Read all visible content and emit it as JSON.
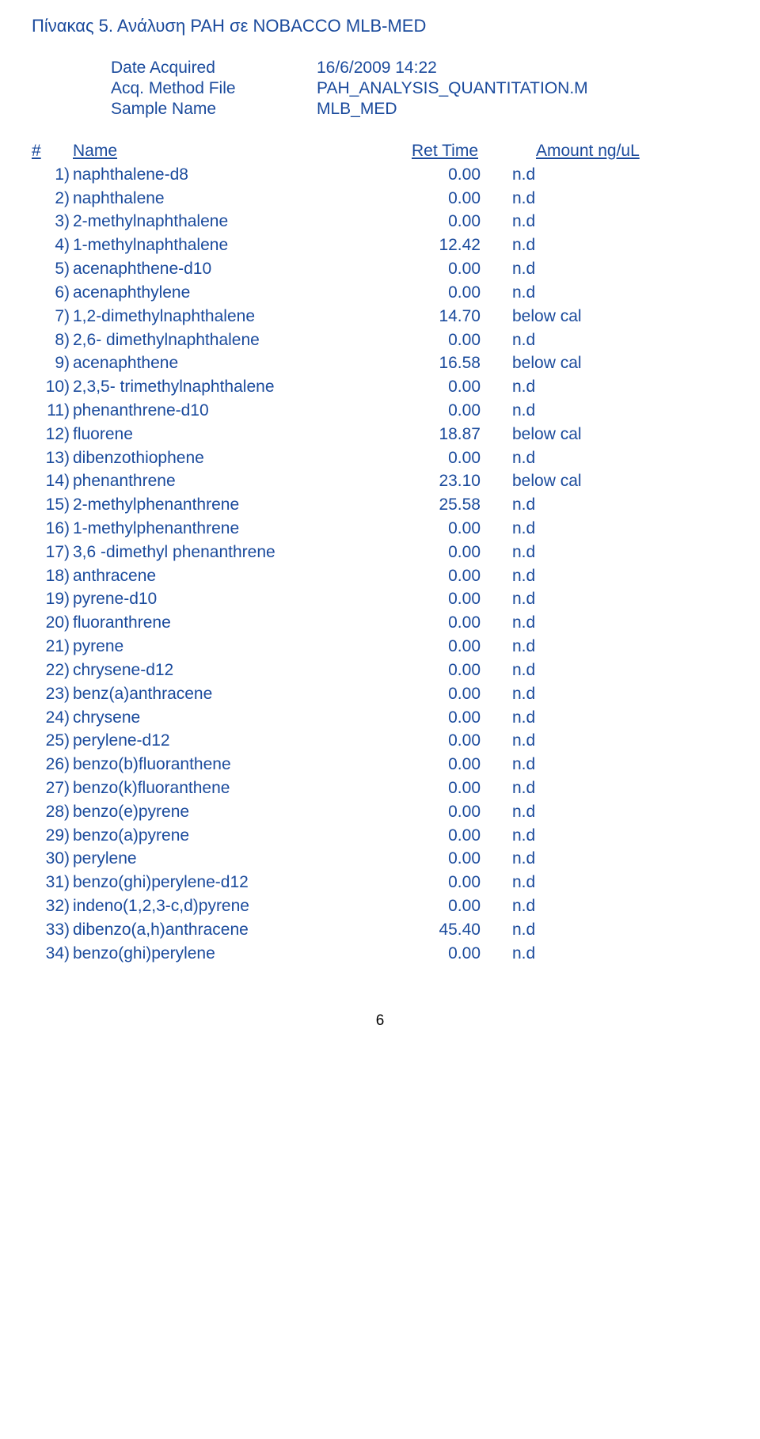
{
  "title": "Πίνακας 5. Ανάλυση PAH σε NOBACCO MLB-MED",
  "meta": {
    "date_label": "Date Acquired",
    "date_value": "16/6/2009 14:22",
    "method_label": "Acq. Method File",
    "method_value": "PAH_ANALYSIS_QUANTITATION.M",
    "sample_label": "Sample Name",
    "sample_value": "MLB_MED"
  },
  "headers": {
    "num": "#",
    "name": "Name",
    "ret": "Ret Time",
    "amt": "Amount ng/uL"
  },
  "rows": [
    {
      "num": "1)",
      "name": "naphthalene-d8",
      "ret": "0.00",
      "amt": "n.d"
    },
    {
      "num": "2)",
      "name": "naphthalene",
      "ret": "0.00",
      "amt": "n.d"
    },
    {
      "num": "3)",
      "name": "2-methylnaphthalene",
      "ret": "0.00",
      "amt": "n.d"
    },
    {
      "num": "4)",
      "name": "1-methylnaphthalene",
      "ret": "12.42",
      "amt": "n.d"
    },
    {
      "num": "5)",
      "name": "acenaphthene-d10",
      "ret": "0.00",
      "amt": "n.d"
    },
    {
      "num": "6)",
      "name": "acenaphthylene",
      "ret": "0.00",
      "amt": "n.d"
    },
    {
      "num": "7)",
      "name": "1,2-dimethylnaphthalene",
      "ret": "14.70",
      "amt": "below cal"
    },
    {
      "num": "8)",
      "name": "2,6- dimethylnaphthalene",
      "ret": "0.00",
      "amt": "n.d"
    },
    {
      "num": "9)",
      "name": "acenaphthene",
      "ret": "16.58",
      "amt": "below cal"
    },
    {
      "num": "10)",
      "name": "2,3,5- trimethylnaphthalene",
      "ret": "0.00",
      "amt": "n.d"
    },
    {
      "num": "11)",
      "name": "phenanthrene-d10",
      "ret": "0.00",
      "amt": "n.d"
    },
    {
      "num": "12)",
      "name": "fluorene",
      "ret": "18.87",
      "amt": "below cal"
    },
    {
      "num": "13)",
      "name": "dibenzothiophene",
      "ret": "0.00",
      "amt": "n.d"
    },
    {
      "num": "14)",
      "name": "phenanthrene",
      "ret": "23.10",
      "amt": "below cal"
    },
    {
      "num": "15)",
      "name": "2-methylphenanthrene",
      "ret": "25.58",
      "amt": "n.d"
    },
    {
      "num": "16)",
      "name": "1-methylphenanthrene",
      "ret": "0.00",
      "amt": "n.d"
    },
    {
      "num": "17)",
      "name": "3,6 -dimethyl phenanthrene",
      "ret": "0.00",
      "amt": "n.d"
    },
    {
      "num": "18)",
      "name": "anthracene",
      "ret": "0.00",
      "amt": "n.d"
    },
    {
      "num": "19)",
      "name": "pyrene-d10",
      "ret": "0.00",
      "amt": "n.d"
    },
    {
      "num": "20)",
      "name": "fluoranthrene",
      "ret": "0.00",
      "amt": "n.d"
    },
    {
      "num": "21)",
      "name": "pyrene",
      "ret": "0.00",
      "amt": "n.d"
    },
    {
      "num": "22)",
      "name": "chrysene-d12",
      "ret": "0.00",
      "amt": "n.d"
    },
    {
      "num": "23)",
      "name": "benz(a)anthracene",
      "ret": "0.00",
      "amt": "n.d"
    },
    {
      "num": "24)",
      "name": "chrysene",
      "ret": "0.00",
      "amt": "n.d"
    },
    {
      "num": "25)",
      "name": "perylene-d12",
      "ret": "0.00",
      "amt": "n.d"
    },
    {
      "num": "26)",
      "name": "benzo(b)fluoranthene",
      "ret": "0.00",
      "amt": "n.d"
    },
    {
      "num": "27)",
      "name": "benzo(k)fluoranthene",
      "ret": "0.00",
      "amt": "n.d"
    },
    {
      "num": "28)",
      "name": "benzo(e)pyrene",
      "ret": "0.00",
      "amt": "n.d"
    },
    {
      "num": "29)",
      "name": "benzo(a)pyrene",
      "ret": "0.00",
      "amt": "n.d"
    },
    {
      "num": "30)",
      "name": "perylene",
      "ret": "0.00",
      "amt": "n.d"
    },
    {
      "num": "31)",
      "name": "benzo(ghi)perylene-d12",
      "ret": "0.00",
      "amt": "n.d"
    },
    {
      "num": "32)",
      "name": "indeno(1,2,3-c,d)pyrene",
      "ret": "0.00",
      "amt": "n.d"
    },
    {
      "num": "33)",
      "name": "dibenzo(a,h)anthracene",
      "ret": "45.40",
      "amt": "n.d"
    },
    {
      "num": "34)",
      "name": "benzo(ghi)perylene",
      "ret": "0.00",
      "amt": "n.d"
    }
  ],
  "page_number": "6"
}
